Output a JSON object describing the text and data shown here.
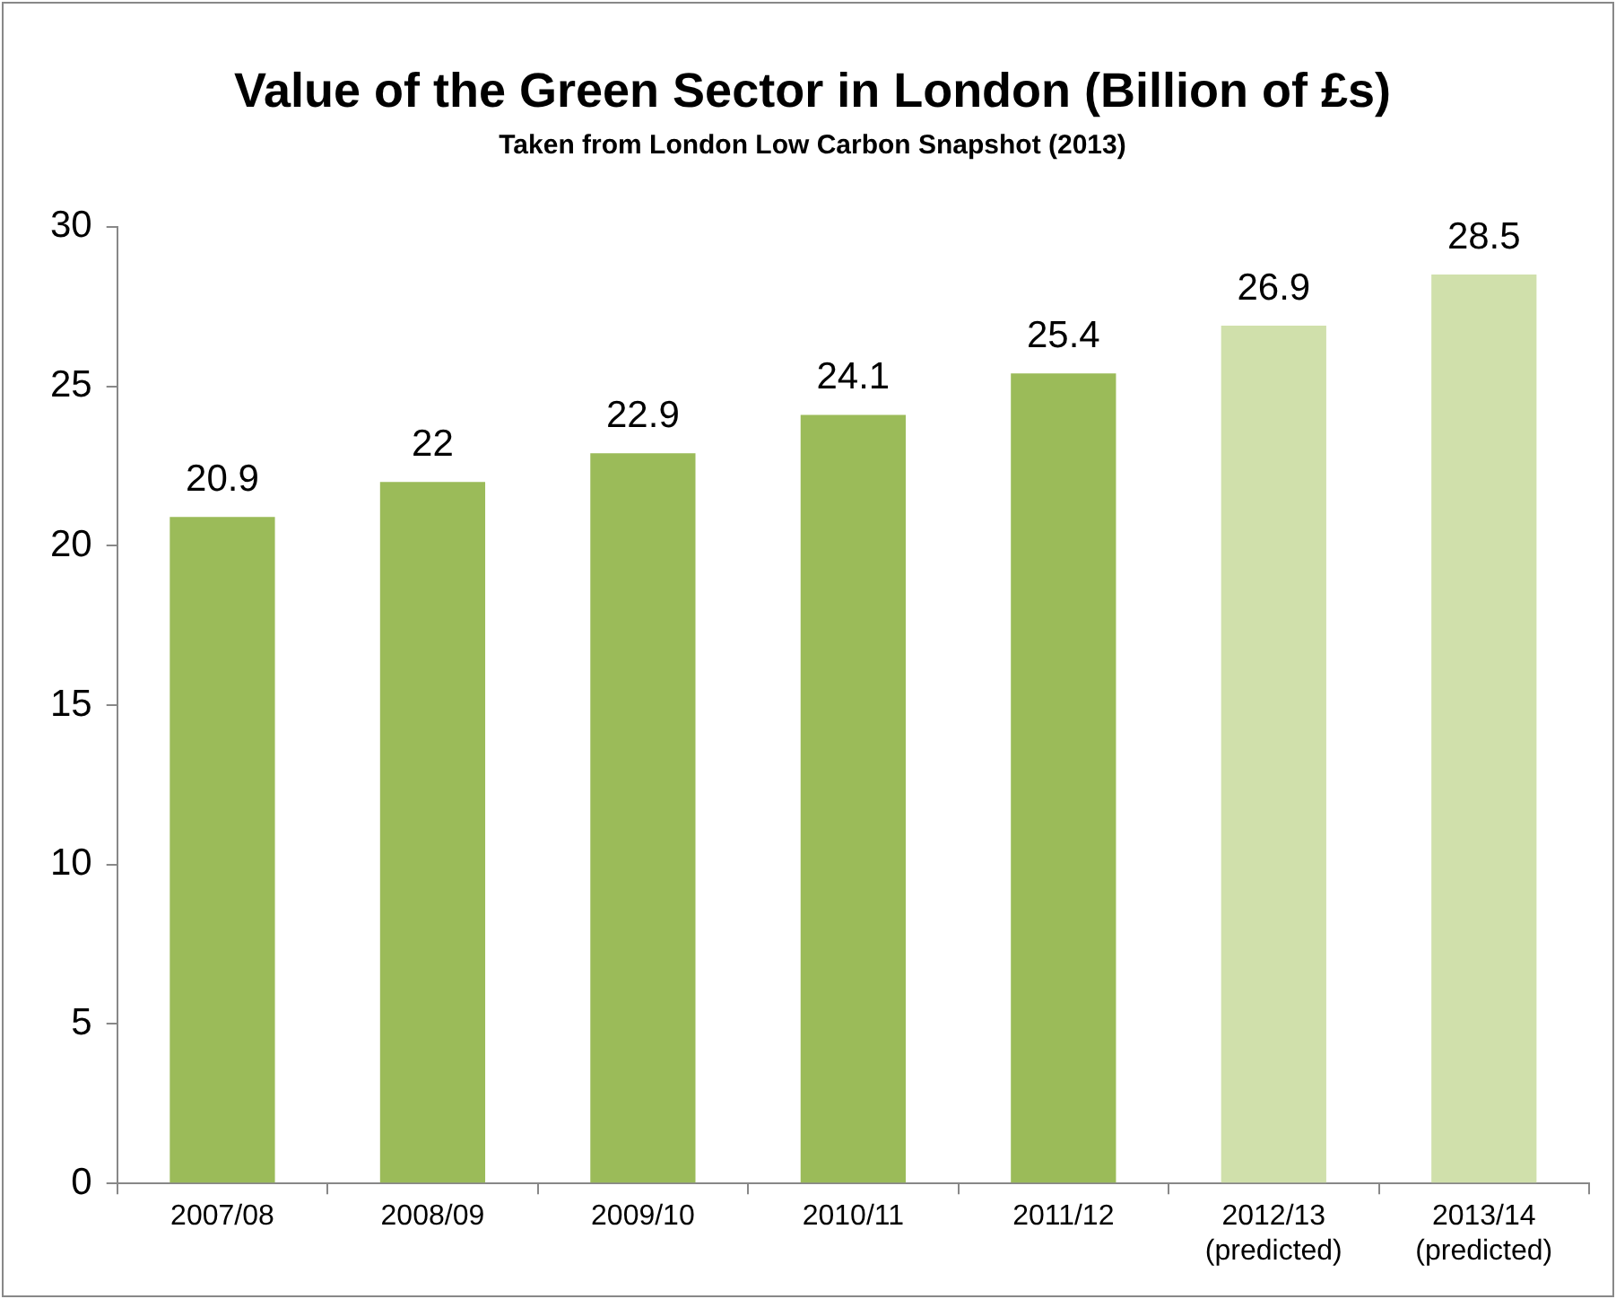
{
  "chart_data": {
    "type": "bar",
    "title": "Value of the Green Sector in London (Billion of £s)",
    "subtitle": "Taken from London Low Carbon Snapshot (2013)",
    "categories": [
      "2007/08",
      "2008/09",
      "2009/10",
      "2010/11",
      "2011/12",
      "2012/13\n(predicted)",
      "2013/14\n(predicted)"
    ],
    "values": [
      20.9,
      22,
      22.9,
      24.1,
      25.4,
      26.9,
      28.5
    ],
    "colors": [
      "#9bbb59",
      "#9bbb59",
      "#9bbb59",
      "#9bbb59",
      "#9bbb59",
      "#d0e0ab",
      "#d0e0ab"
    ],
    "ylim": [
      0,
      30
    ],
    "yticks": [
      0,
      5,
      10,
      15,
      20,
      25,
      30
    ],
    "data_labels": true
  }
}
